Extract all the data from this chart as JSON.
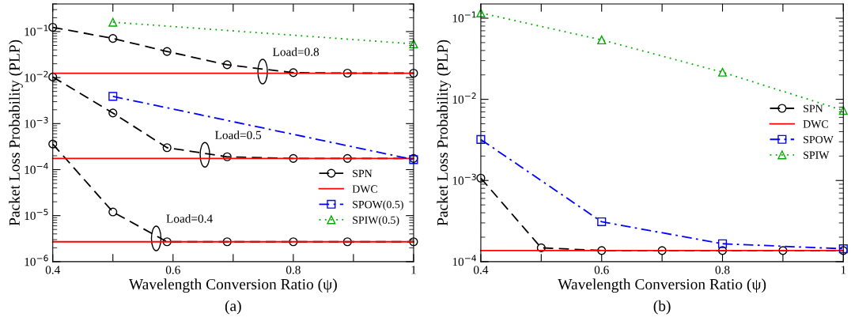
{
  "chart_data": [
    {
      "type": "line",
      "xlabel": "Wavelength Conversion Ratio (ψ)",
      "ylabel": "Packet Loss Probability (PLP)",
      "log": "y",
      "grid": false,
      "legend": "lower right",
      "xlim": [
        0.4,
        1
      ],
      "xticks": [
        0.4,
        {
          "value": 0.5,
          "label": null
        },
        0.6,
        {
          "value": 0.7,
          "label": null
        },
        0.8,
        {
          "value": 0.9,
          "label": null
        },
        1
      ],
      "ylim": [
        1e-06,
        0.4
      ],
      "yticks": [
        {
          "value": 1e-06,
          "label": "10$^{−6}$"
        },
        {
          "value": 1e-05,
          "label": "10$^{−5}$"
        },
        {
          "value": 0.0001,
          "label": "10$^{−4}$"
        },
        {
          "value": 0.001,
          "label": "10$^{−3}$"
        },
        {
          "value": 0.01,
          "label": "10$^{−2}$"
        },
        {
          "value": 0.1,
          "label": "10$^{−1}$"
        }
      ],
      "series": [
        {
          "name": "SPN",
          "color": "#000000",
          "marker": "circle",
          "line_style": "dashed",
          "x": [
            0.4,
            0.5,
            0.59,
            0.69,
            0.8,
            0.89,
            1.0
          ],
          "values": [
            0.124,
            0.071,
            0.037,
            0.019,
            0.0128,
            0.0125,
            0.0125
          ]
        },
        {
          "color": "#000000",
          "marker": "circle",
          "line_style": "dashed",
          "x": [
            0.4,
            0.5,
            0.59,
            0.69,
            0.8,
            0.89,
            1.0
          ],
          "values": [
            0.0103,
            0.0017,
            0.0003,
            0.00019,
            0.000175,
            0.000175,
            0.000175
          ]
        },
        {
          "color": "#000000",
          "marker": "circle",
          "line_style": "dashed",
          "x": [
            0.4,
            0.5,
            0.59,
            0.69,
            0.8,
            0.89,
            1.0
          ],
          "values": [
            0.00036,
            1.2e-05,
            2.7e-06,
            2.7e-06,
            2.7e-06,
            2.7e-06,
            2.7e-06
          ]
        },
        {
          "name": "DWC",
          "color": "#ff0000",
          "marker": "none",
          "line_style": "solid",
          "x": [
            0.4,
            1.0
          ],
          "values": [
            0.0124,
            0.0124
          ]
        },
        {
          "color": "#ff0000",
          "marker": "none",
          "line_style": "solid",
          "x": [
            0.4,
            1.0
          ],
          "values": [
            0.000175,
            0.000175
          ]
        },
        {
          "color": "#ff0000",
          "marker": "none",
          "line_style": "solid",
          "x": [
            0.4,
            1.0
          ],
          "values": [
            2.7e-06,
            2.7e-06
          ]
        },
        {
          "name": "SPOW(0.5)",
          "color": "#0000ff",
          "marker": "square",
          "line_style": "dashdot",
          "x": [
            0.5,
            1.0
          ],
          "values": [
            0.0039,
            0.000165
          ]
        },
        {
          "name": "SPIW(0.5)",
          "color": "#00aa00",
          "marker": "triangle",
          "line_style": "dotted",
          "x": [
            0.5,
            1.0
          ],
          "values": [
            0.16,
            0.054
          ]
        }
      ],
      "annotations": [
        {
          "text": "Load=0.8",
          "x": 0.749,
          "y": 0.0135
        },
        {
          "text": "Load=0.5",
          "x": 0.653,
          "y": 0.00021
        },
        {
          "text": "Load=0.4",
          "x": 0.572,
          "y": 3.2e-06
        },
        "(a)"
      ]
    },
    {
      "type": "line",
      "xlabel": "Wavelength Conversion Ratio (ψ)",
      "ylabel": "Packet Loss Probability (PLP)",
      "log": "y",
      "grid": false,
      "legend": "right",
      "xlim": [
        0.4,
        1
      ],
      "xticks": [
        0.4,
        {
          "value": 0.5,
          "label": null
        },
        0.6,
        {
          "value": 0.7,
          "label": null
        },
        0.8,
        {
          "value": 0.9,
          "label": null
        },
        1
      ],
      "ylim": [
        0.0001,
        0.15
      ],
      "yticks": [
        {
          "value": 0.0001,
          "label": "10$^{−4}$"
        },
        {
          "value": 0.001,
          "label": "10$^{−3}$"
        },
        {
          "value": 0.01,
          "label": "10$^{−2}$"
        },
        {
          "value": 0.1,
          "label": "10$^{−1}$"
        }
      ],
      "series": [
        {
          "name": "SPN",
          "color": "#000000",
          "marker": "circle",
          "line_style": "dashed",
          "x": [
            0.4,
            0.5,
            0.6,
            0.7,
            0.8,
            0.9,
            1.0
          ],
          "values": [
            0.00107,
            0.000148,
            0.000137,
            0.000137,
            0.000137,
            0.000137,
            0.000137
          ]
        },
        {
          "name": "DWC",
          "color": "#ff0000",
          "marker": "none",
          "line_style": "solid",
          "x": [
            0.4,
            1.0
          ],
          "values": [
            0.000137,
            0.000137
          ]
        },
        {
          "name": "SPOW",
          "color": "#0000ff",
          "marker": "square",
          "line_style": "dashdot",
          "x": [
            0.4,
            0.6,
            0.8,
            1.0
          ],
          "values": [
            0.0032,
            0.00031,
            0.000166,
            0.000144
          ]
        },
        {
          "name": "SPIW",
          "color": "#00aa00",
          "marker": "triangle",
          "line_style": "dotted",
          "x": [
            0.4,
            0.6,
            0.8,
            1.0
          ],
          "values": [
            0.116,
            0.054,
            0.0216,
            0.0073
          ]
        }
      ],
      "annotations": [
        "(b)"
      ]
    }
  ]
}
